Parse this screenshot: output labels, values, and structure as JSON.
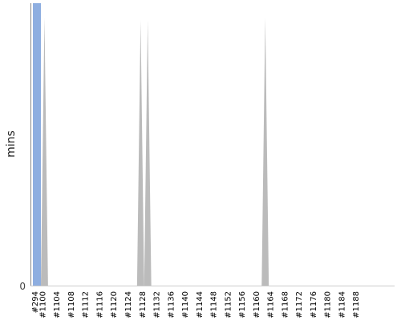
{
  "chart_data": {
    "type": "area",
    "ylabel": "mins",
    "xlabel": "",
    "title": "",
    "grid": false,
    "y_ticks": [
      "0"
    ],
    "x_tick_labels": [
      "#294",
      "#1100",
      "#1104",
      "#1108",
      "#1112",
      "#1116",
      "#1120",
      "#1124",
      "#1128",
      "#1132",
      "#1136",
      "#1140",
      "#1144",
      "#1148",
      "#1152",
      "#1156",
      "#1160",
      "#1164",
      "#1168",
      "#1172",
      "#1176",
      "#1180",
      "#1184",
      "#1188"
    ],
    "highlight_build": "#294",
    "colors": {
      "highlight": "#8eaee0",
      "area": "#bbbbbb",
      "axis": "#888888"
    },
    "series": [
      {
        "values_by_build": [
          {
            "build": "#294",
            "value": 1.0
          },
          {
            "build": "#1099",
            "value": 0.0
          },
          {
            "build": "#1100",
            "value": 0.95
          },
          {
            "build": "#1101",
            "value": 0.0
          },
          {
            "build": "#1126",
            "value": 0.0
          },
          {
            "build": "#1127",
            "value": 0.94
          },
          {
            "build": "#1128",
            "value": 0.0
          },
          {
            "build": "#1129",
            "value": 0.94
          },
          {
            "build": "#1130",
            "value": 0.0
          },
          {
            "build": "#1161",
            "value": 0.0
          },
          {
            "build": "#1162",
            "value": 0.95
          },
          {
            "build": "#1163",
            "value": 0.0
          }
        ]
      }
    ]
  }
}
